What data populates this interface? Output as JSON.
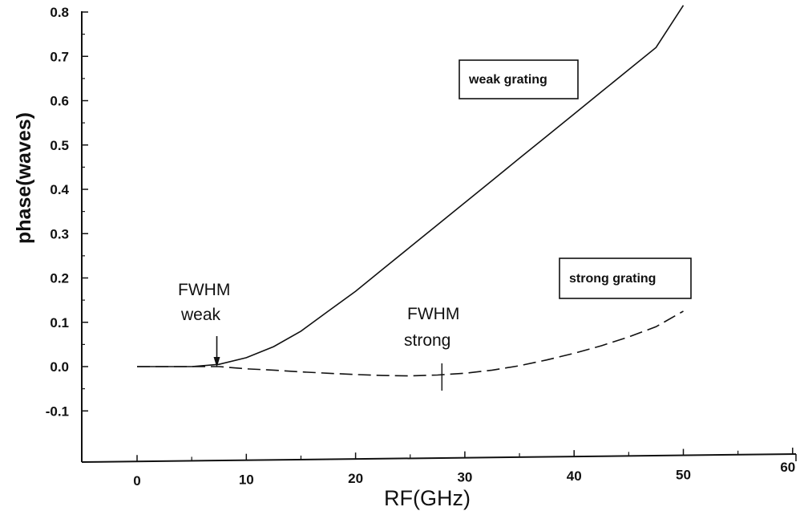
{
  "chart_data": {
    "type": "line",
    "xlabel": "RF(GHz)",
    "ylabel": "phase(waves)",
    "xlim": [
      -5,
      60
    ],
    "ylim": [
      -0.18,
      0.82
    ],
    "x_ticks": [
      0,
      10,
      20,
      30,
      40,
      50,
      60
    ],
    "y_ticks": [
      -0.1,
      0.0,
      0.1,
      0.2,
      0.3,
      0.4,
      0.5,
      0.6,
      0.7,
      0.8
    ],
    "grid": false,
    "series": [
      {
        "name": "weak grating",
        "style": "solid",
        "x": [
          0,
          2.5,
          5,
          7.5,
          10,
          12.5,
          15,
          17.5,
          20,
          22.5,
          25,
          27.5,
          30,
          32.5,
          35,
          37.5,
          40,
          42.5,
          45,
          47.5,
          50
        ],
        "y": [
          0.0,
          0.0,
          0.0,
          0.005,
          0.02,
          0.045,
          0.08,
          0.125,
          0.17,
          0.22,
          0.27,
          0.32,
          0.37,
          0.42,
          0.47,
          0.52,
          0.57,
          0.62,
          0.67,
          0.72,
          0.815
        ]
      },
      {
        "name": "strong grating",
        "style": "dashed",
        "x": [
          0,
          2.5,
          5,
          7.5,
          10,
          12.5,
          15,
          17.5,
          20,
          22.5,
          25,
          27.5,
          30,
          32.5,
          35,
          37.5,
          40,
          42.5,
          45,
          47.5,
          50
        ],
        "y": [
          0.0,
          0.0,
          0.0,
          0.0,
          -0.005,
          -0.008,
          -0.012,
          -0.015,
          -0.018,
          -0.02,
          -0.021,
          -0.019,
          -0.015,
          -0.008,
          0.002,
          0.015,
          0.03,
          0.047,
          0.067,
          0.09,
          0.125
        ]
      }
    ],
    "annotations": [
      {
        "id": "fwhm_weak",
        "lines": [
          "FWHM",
          "weak"
        ],
        "x": 7.3,
        "y": 0.0
      },
      {
        "id": "fwhm_strong",
        "lines": [
          "FWHM",
          "strong"
        ],
        "x": 27.9,
        "y": -0.018
      }
    ],
    "legend_boxes": [
      {
        "series": "weak grating",
        "label": "weak grating",
        "placement": "upper-right"
      },
      {
        "series": "strong grating",
        "label": "strong grating",
        "placement": "middle-right"
      }
    ]
  }
}
